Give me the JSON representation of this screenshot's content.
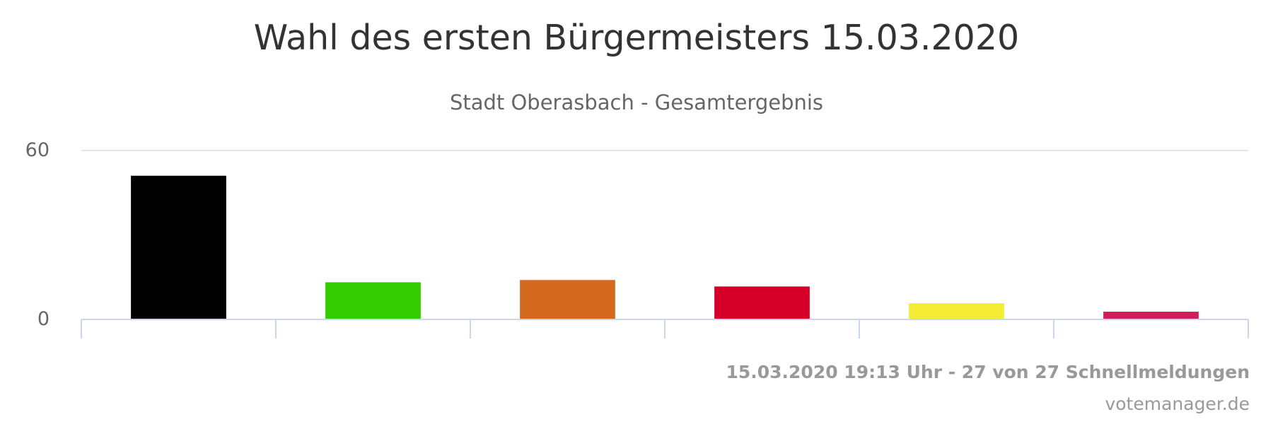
{
  "chart_data": {
    "type": "bar",
    "title": "Wahl des ersten Bürgermeisters 15.03.2020",
    "subtitle": "Stadt Oberasbach - Gesamtergebnis",
    "ylim": [
      0,
      60
    ],
    "yticks": [
      "0",
      "60"
    ],
    "grid": true,
    "legend": "none",
    "series": [
      {
        "value": 51.0,
        "color": "#000000"
      },
      {
        "value": 13.0,
        "color": "#33cc00"
      },
      {
        "value": 13.8,
        "color": "#d2691e"
      },
      {
        "value": 11.5,
        "color": "#d4002a"
      },
      {
        "value": 5.5,
        "color": "#f5ec35"
      },
      {
        "value": 2.5,
        "color": "#cc1f5a"
      }
    ]
  },
  "footer": {
    "status": "15.03.2020 19:13 Uhr - 27 von 27 Schnellmeldungen",
    "credit": "votemanager.de"
  }
}
